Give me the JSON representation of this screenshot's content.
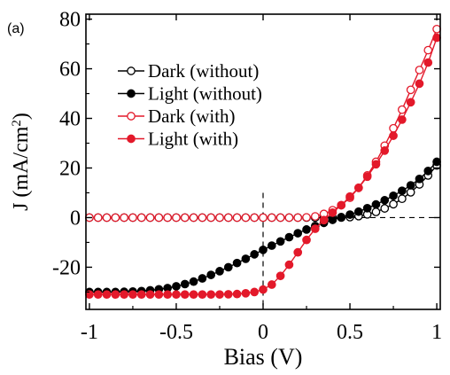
{
  "chart_data": {
    "panel_label": "(a)",
    "type": "line",
    "xlabel": "Bias (V)",
    "ylabel_main": "J (mA/cm",
    "ylabel_sup": "2",
    "ylabel_close": ")",
    "xlim": [
      -1.02,
      1.02
    ],
    "ylim": [
      -37,
      82
    ],
    "xticks": [
      -1,
      -0.5,
      0,
      0.5,
      1
    ],
    "xtick_labels": [
      "-1",
      "-0.5",
      "0",
      "0.5",
      "1"
    ],
    "yticks": [
      -20,
      0,
      20,
      40,
      60,
      80
    ],
    "ytick_labels": [
      "-20",
      "0",
      "20",
      "40",
      "60",
      "80"
    ],
    "legend_position": "upper-left",
    "reference_lines": {
      "horizontal_at_y": 0,
      "vertical_at_x": 0,
      "style": "dashed"
    },
    "series": [
      {
        "name": "Dark (without)",
        "color": "#000000",
        "marker": "open-circle",
        "x": [
          -1,
          -0.95,
          -0.9,
          -0.85,
          -0.8,
          -0.75,
          -0.7,
          -0.65,
          -0.6,
          -0.55,
          -0.5,
          -0.45,
          -0.4,
          -0.35,
          -0.3,
          -0.25,
          -0.2,
          -0.15,
          -0.1,
          -0.05,
          0,
          0.05,
          0.1,
          0.15,
          0.2,
          0.25,
          0.3,
          0.35,
          0.4,
          0.45,
          0.5,
          0.55,
          0.6,
          0.65,
          0.7,
          0.75,
          0.8,
          0.85,
          0.9,
          0.95,
          1
        ],
        "y": [
          0,
          0,
          0,
          0,
          0,
          0,
          0,
          0,
          0,
          0,
          0,
          0,
          0,
          0,
          0,
          0,
          0,
          0,
          0,
          0,
          0,
          0,
          0,
          0,
          0,
          0,
          0,
          0,
          0,
          0,
          0.2,
          0.6,
          1.3,
          2.3,
          3.7,
          5.4,
          7.6,
          10.2,
          13.4,
          17.0,
          21.0
        ]
      },
      {
        "name": "Light (without)",
        "color": "#000000",
        "marker": "filled-circle",
        "x": [
          -1,
          -0.95,
          -0.9,
          -0.85,
          -0.8,
          -0.75,
          -0.7,
          -0.65,
          -0.6,
          -0.55,
          -0.5,
          -0.45,
          -0.4,
          -0.35,
          -0.3,
          -0.25,
          -0.2,
          -0.15,
          -0.1,
          -0.05,
          0,
          0.05,
          0.1,
          0.15,
          0.2,
          0.25,
          0.3,
          0.35,
          0.4,
          0.45,
          0.5,
          0.55,
          0.6,
          0.65,
          0.7,
          0.75,
          0.8,
          0.85,
          0.9,
          0.95,
          1
        ],
        "y": [
          -30,
          -30,
          -30,
          -30,
          -29.9,
          -29.8,
          -29.6,
          -29.3,
          -28.9,
          -28.4,
          -27.7,
          -26.8,
          -25.8,
          -24.5,
          -23.1,
          -21.6,
          -20.0,
          -18.3,
          -16.6,
          -14.8,
          -13.0,
          -11.3,
          -9.6,
          -7.9,
          -6.3,
          -4.8,
          -3.4,
          -2.1,
          -0.9,
          0.2,
          1.2,
          2.4,
          3.8,
          5.3,
          7.0,
          8.8,
          10.8,
          13.0,
          15.6,
          18.8,
          22.5
        ]
      },
      {
        "name": "Dark (with)",
        "color": "#e3192a",
        "marker": "open-circle",
        "x": [
          -1,
          -0.95,
          -0.9,
          -0.85,
          -0.8,
          -0.75,
          -0.7,
          -0.65,
          -0.6,
          -0.55,
          -0.5,
          -0.45,
          -0.4,
          -0.35,
          -0.3,
          -0.25,
          -0.2,
          -0.15,
          -0.1,
          -0.05,
          0,
          0.05,
          0.1,
          0.15,
          0.2,
          0.25,
          0.3,
          0.35,
          0.4,
          0.45,
          0.5,
          0.55,
          0.6,
          0.65,
          0.7,
          0.75,
          0.8,
          0.85,
          0.9,
          0.95,
          1
        ],
        "y": [
          0,
          0,
          0,
          0,
          0,
          0,
          0,
          0,
          0,
          0,
          0,
          0,
          0,
          0,
          0,
          0,
          0,
          0,
          0,
          0,
          0,
          0,
          0,
          0,
          0,
          0.1,
          0.5,
          1.5,
          3.0,
          5.0,
          8.0,
          12.0,
          17.0,
          22.5,
          29.0,
          36.0,
          43.5,
          51.5,
          59.5,
          67.5,
          76.0
        ]
      },
      {
        "name": "Light (with)",
        "color": "#e3192a",
        "marker": "filled-circle",
        "x": [
          -1,
          -0.95,
          -0.9,
          -0.85,
          -0.8,
          -0.75,
          -0.7,
          -0.65,
          -0.6,
          -0.55,
          -0.5,
          -0.45,
          -0.4,
          -0.35,
          -0.3,
          -0.25,
          -0.2,
          -0.15,
          -0.1,
          -0.05,
          0,
          0.05,
          0.1,
          0.15,
          0.2,
          0.25,
          0.3,
          0.35,
          0.4,
          0.45,
          0.5,
          0.55,
          0.6,
          0.65,
          0.7,
          0.75,
          0.8,
          0.85,
          0.9,
          0.95,
          1
        ],
        "y": [
          -31,
          -31,
          -31,
          -31,
          -31,
          -31,
          -31,
          -31,
          -31,
          -31,
          -31,
          -31,
          -31,
          -31,
          -31,
          -31,
          -30.9,
          -30.8,
          -30.5,
          -30.0,
          -29.0,
          -27.0,
          -23.5,
          -19.0,
          -14.0,
          -9.0,
          -4.5,
          -1.0,
          2.0,
          5.0,
          8.5,
          12.0,
          16.5,
          21.5,
          27.0,
          33.0,
          39.5,
          46.5,
          54.0,
          62.5,
          72.5
        ]
      }
    ]
  }
}
